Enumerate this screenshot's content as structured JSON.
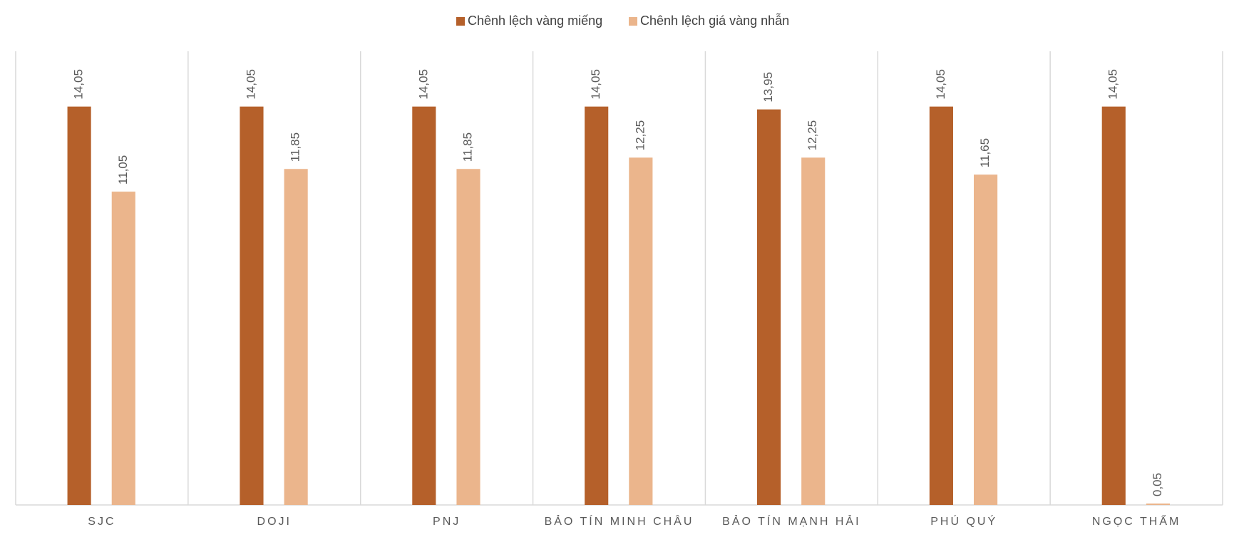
{
  "chart_data": {
    "type": "bar",
    "categories": [
      "SJC",
      "DOJI",
      "PNJ",
      "BẢO TÍN MINH CHÂU",
      "BẢO TÍN MẠNH HẢI",
      "PHÚ QUÝ",
      "NGỌC THẨM"
    ],
    "series": [
      {
        "name": "Chênh lệch vàng miếng",
        "color": "#b5602a",
        "values": [
          14.05,
          14.05,
          14.05,
          14.05,
          13.95,
          14.05,
          14.05
        ],
        "value_labels": [
          "14,05",
          "14,05",
          "14,05",
          "14,05",
          "13,95",
          "14,05",
          "14,05"
        ]
      },
      {
        "name": "Chênh lệch giá vàng nhẫn",
        "color": "#ebb58c",
        "values": [
          11.05,
          11.85,
          11.85,
          12.25,
          12.25,
          11.65,
          0.05
        ],
        "value_labels": [
          "11,05",
          "11,85",
          "11,85",
          "12,25",
          "12,25",
          "11,65",
          "0,05"
        ]
      }
    ],
    "ylim": [
      0,
      16
    ],
    "legend": "top"
  }
}
